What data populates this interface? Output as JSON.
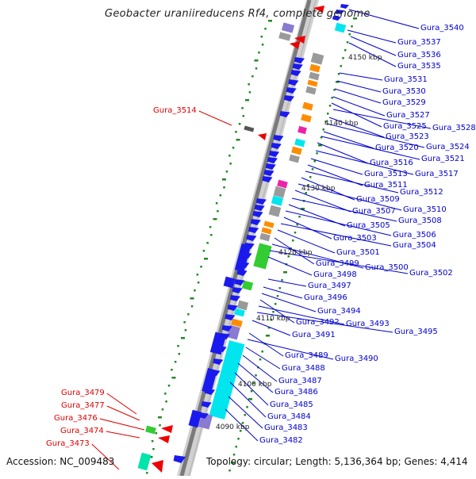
{
  "title": "Geobacter uraniireducens Rf4, complete genome",
  "footer": {
    "accession": "Accession: NC_009483",
    "topology": "Topology: circular; Length: 5,136,364 bp; Genes: 4,414"
  },
  "colors": {
    "backbone": "#7a7a7a",
    "forward_gene": "#1a1aee",
    "reverse_gene": "#1a1aee",
    "label_blue": "#0000cc",
    "label_red": "#dd0000",
    "cog_cyan": "#00e5ee",
    "cog_green": "#33cc33",
    "cog_orange": "#ff8c00",
    "cog_grey": "#9a9a9a",
    "cog_magenta": "#ee22aa",
    "cog_purple": "#8a7ad0",
    "rna_red": "#ee0000",
    "tick_green": "#228822"
  },
  "scale_labels": [
    "4150 kbp",
    "4140 kbp",
    "4130 kbp",
    "4120 kbp",
    "4110 kbp",
    "4100 kbp",
    "4090 kbp"
  ],
  "blue_labels": [
    "Gura_3540",
    "Gura_3537",
    "Gura_3536",
    "Gura_3535",
    "Gura_3531",
    "Gura_3530",
    "Gura_3529",
    "Gura_3527",
    "Gura_3525",
    "Gura_3528",
    "Gura_3523",
    "Gura_3524",
    "Gura_3520",
    "Gura_3521",
    "Gura_3516",
    "Gura_3517",
    "Gura_3513",
    "Gura_3511",
    "Gura_3512",
    "Gura_3509",
    "Gura_3510",
    "Gura_3507",
    "Gura_3508",
    "Gura_3505",
    "Gura_3506",
    "Gura_3503",
    "Gura_3504",
    "Gura_3501",
    "Gura_3499",
    "Gura_3500",
    "Gura_3502",
    "Gura_3498",
    "Gura_3497",
    "Gura_3496",
    "Gura_3494",
    "Gura_3492",
    "Gura_3493",
    "Gura_3495",
    "Gura_3491",
    "Gura_3489",
    "Gura_3490",
    "Gura_3488",
    "Gura_3487",
    "Gura_3486",
    "Gura_3485",
    "Gura_3484",
    "Gura_3483",
    "Gura_3482"
  ],
  "red_labels": [
    "Gura_3514",
    "Gura_3479",
    "Gura_3477",
    "Gura_3476",
    "Gura_3474",
    "Gura_3473"
  ]
}
